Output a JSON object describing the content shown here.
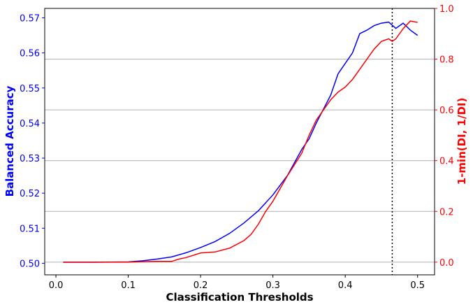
{
  "chart_data": {
    "type": "line",
    "title": "",
    "xlabel": "Classification Thresholds",
    "ylabel_left": "Balanced Accuracy",
    "ylabel_right": "1-min(DI, 1/DI)",
    "xlim": [
      -0.0155,
      0.5235
    ],
    "ylim_left": [
      0.4967,
      0.5727
    ],
    "ylim_right": [
      -0.05,
      1.0
    ],
    "x_ticks": [
      0.0,
      0.1,
      0.2,
      0.3,
      0.4,
      0.5
    ],
    "x_tick_labels": [
      "0.0",
      "0.1",
      "0.2",
      "0.3",
      "0.4",
      "0.5"
    ],
    "y_left_ticks": [
      0.5,
      0.51,
      0.52,
      0.53,
      0.54,
      0.55,
      0.56,
      0.57
    ],
    "y_left_tick_labels": [
      "0.50",
      "0.51",
      "0.52",
      "0.53",
      "0.54",
      "0.55",
      "0.56",
      "0.57"
    ],
    "y_right_ticks": [
      0.0,
      0.2,
      0.4,
      0.6,
      0.8,
      1.0
    ],
    "y_right_tick_labels": [
      "0.0",
      "0.2",
      "0.4",
      "0.6",
      "0.8",
      "1.0"
    ],
    "grid": "horizontal (right axis)",
    "vline_x": 0.465,
    "colors": {
      "left_series": "#0000ff",
      "right_series": "#ff0000",
      "left_axis": "#0000ff",
      "right_axis": "#ff0000",
      "vline": "#000000",
      "grid": "#b0b0b0"
    },
    "series": [
      {
        "axis": "left",
        "color": "#0000ff",
        "x": [
          0.01,
          0.05,
          0.1,
          0.12,
          0.14,
          0.16,
          0.18,
          0.2,
          0.22,
          0.24,
          0.26,
          0.28,
          0.3,
          0.32,
          0.34,
          0.35,
          0.36,
          0.37,
          0.38,
          0.39,
          0.4,
          0.41,
          0.42,
          0.43,
          0.44,
          0.45,
          0.46,
          0.47,
          0.48,
          0.49,
          0.5
        ],
        "y": [
          0.5003,
          0.5003,
          0.5004,
          0.5007,
          0.5012,
          0.5018,
          0.503,
          0.5045,
          0.5062,
          0.5085,
          0.5115,
          0.515,
          0.5195,
          0.525,
          0.5325,
          0.5355,
          0.54,
          0.544,
          0.548,
          0.554,
          0.557,
          0.56,
          0.5655,
          0.5665,
          0.5678,
          0.5685,
          0.5688,
          0.567,
          0.5685,
          0.5665,
          0.565
        ]
      },
      {
        "axis": "right",
        "color": "#ff0000",
        "x": [
          0.01,
          0.05,
          0.1,
          0.12,
          0.14,
          0.16,
          0.17,
          0.18,
          0.2,
          0.22,
          0.24,
          0.26,
          0.27,
          0.28,
          0.29,
          0.3,
          0.31,
          0.32,
          0.33,
          0.34,
          0.35,
          0.36,
          0.37,
          0.38,
          0.39,
          0.4,
          0.41,
          0.42,
          0.43,
          0.44,
          0.45,
          0.46,
          0.465,
          0.47,
          0.48,
          0.49,
          0.5
        ],
        "y": [
          0.0,
          0.0,
          0.0,
          0.002,
          0.003,
          0.003,
          0.012,
          0.018,
          0.036,
          0.04,
          0.055,
          0.085,
          0.11,
          0.15,
          0.2,
          0.24,
          0.29,
          0.34,
          0.385,
          0.43,
          0.5,
          0.56,
          0.6,
          0.64,
          0.67,
          0.69,
          0.72,
          0.76,
          0.8,
          0.84,
          0.87,
          0.88,
          0.87,
          0.88,
          0.92,
          0.95,
          0.945
        ]
      }
    ]
  }
}
